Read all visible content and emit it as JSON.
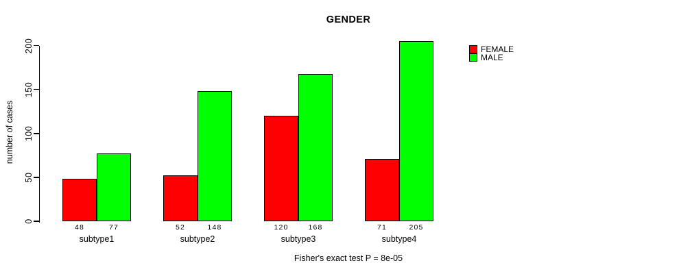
{
  "title": "GENDER",
  "footer": "Fisher's exact test P = 8e-05",
  "chart_data": {
    "type": "bar",
    "title": "GENDER",
    "xlabel": "",
    "ylabel": "number of cases",
    "categories": [
      "subtype1",
      "subtype2",
      "subtype3",
      "subtype4"
    ],
    "series": [
      {
        "name": "FEMALE",
        "color": "#ff0000",
        "values": [
          48,
          52,
          120,
          71
        ]
      },
      {
        "name": "MALE",
        "color": "#00ff00",
        "values": [
          77,
          148,
          168,
          205
        ]
      }
    ],
    "bar_value_labels": [
      [
        "48",
        "77"
      ],
      [
        "52",
        "148"
      ],
      [
        "120",
        "168"
      ],
      [
        "71",
        "205"
      ]
    ],
    "yticks": [
      0,
      50,
      100,
      150,
      200
    ],
    "ylim": [
      0,
      205
    ],
    "grid": false,
    "legend_position": "top-right",
    "annotation": "Fisher's exact test P = 8e-05"
  }
}
